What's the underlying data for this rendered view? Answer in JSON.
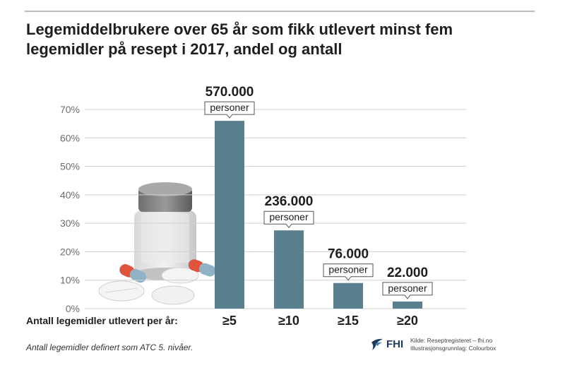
{
  "header": {
    "title_line1": "Legemiddelbrukere over 65 år som fikk utlevert minst fem",
    "title_line2": "legemidler på resept i 2017, andel og antall"
  },
  "chart_data": {
    "type": "bar",
    "title": "Legemiddelbrukere over 65 år som fikk utlevert minst fem legemidler på resept i 2017, andel og antall",
    "xlabel": "Antall legemidler utlevert per år:",
    "ylabel": "",
    "categories": [
      "≥5",
      "≥10",
      "≥15",
      "≥20"
    ],
    "values": [
      66,
      27.5,
      9,
      2.5
    ],
    "value_unit": "%",
    "ylim": [
      0,
      70
    ],
    "yticks": [
      0,
      10,
      20,
      30,
      40,
      50,
      60,
      70
    ],
    "ytick_labels": [
      "0%",
      "10%",
      "20%",
      "30%",
      "40%",
      "50%",
      "60%",
      "70%"
    ],
    "annotations": [
      {
        "count": "570.000",
        "unit": "personer"
      },
      {
        "count": "236.000",
        "unit": "personer"
      },
      {
        "count": "76.000",
        "unit": "personer"
      },
      {
        "count": "22.000",
        "unit": "personer"
      }
    ],
    "bar_color": "#5a7f8f",
    "grid": true,
    "legend": "none"
  },
  "footnote": "Antall legemidler definert som ATC 5. nivåer.",
  "source": {
    "line1": "Kilde: Reseptregisteret – fhi.no",
    "line2": "Illustrasjonsgrunnlag: Colourbox"
  },
  "logo": {
    "text": "FHI",
    "icon": "fhi-logo-icon"
  }
}
